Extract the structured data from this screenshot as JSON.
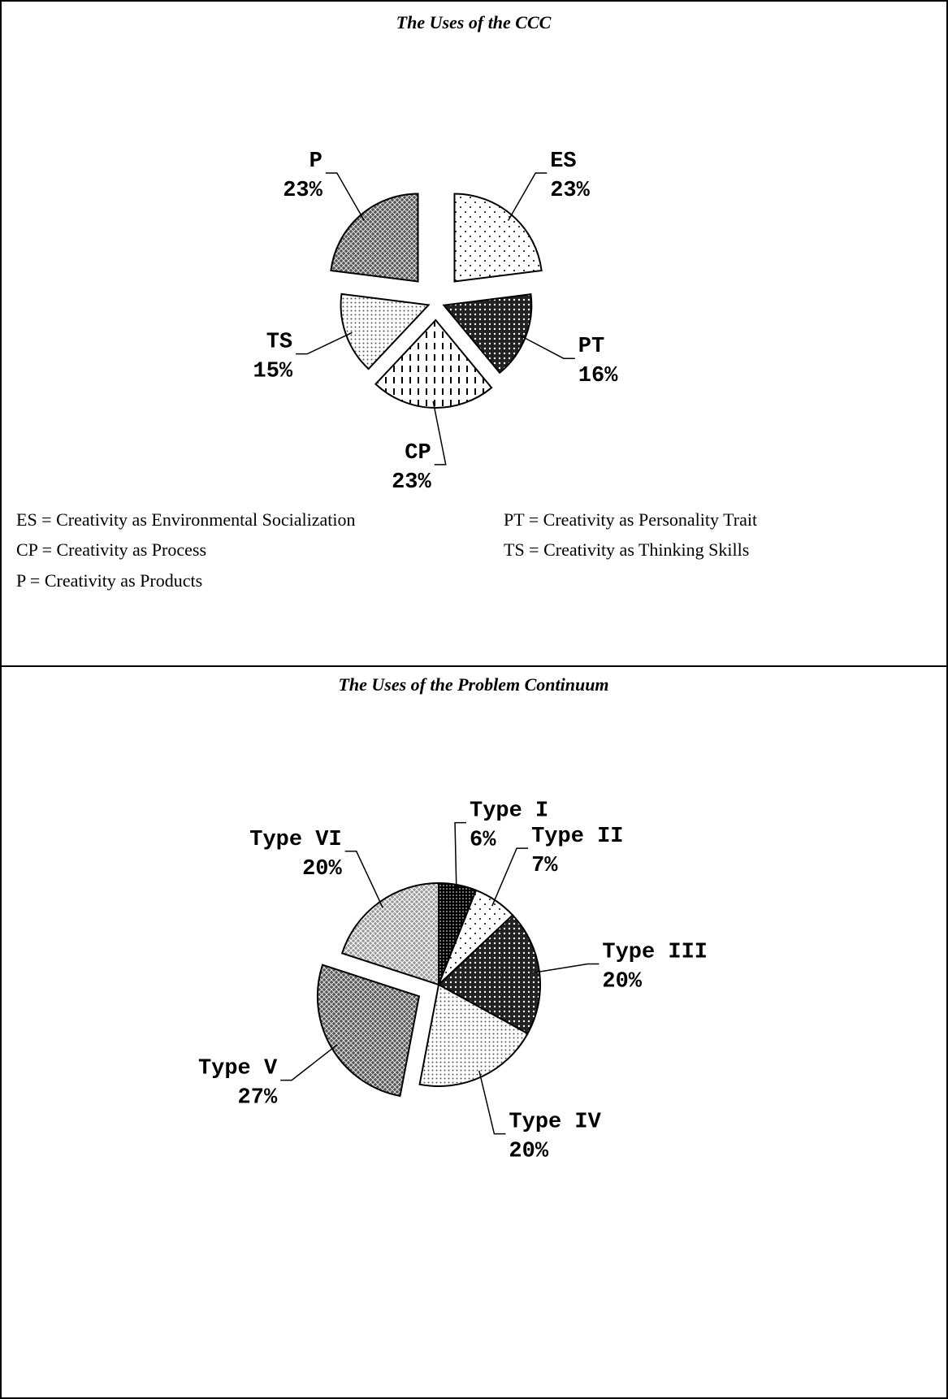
{
  "chart_data": [
    {
      "type": "pie",
      "title": "The Uses of the CCC",
      "categories": [
        "ES",
        "PT",
        "CP",
        "TS",
        "P"
      ],
      "values": [
        23,
        16,
        23,
        15,
        23
      ],
      "value_labels": [
        "23%",
        "16%",
        "23%",
        "15%",
        "23%"
      ],
      "notes": [
        "ES = Creativity as Environmental Socialization",
        "PT = Creativity as Personality Trait",
        "CP = Creativity as Process",
        "TS = Creativity as Thinking Skills",
        "P = Creativity as Products"
      ]
    },
    {
      "type": "pie",
      "title": "The Uses of the Problem Continuum",
      "categories": [
        "Type I",
        "Type II",
        "Type III",
        "Type IV",
        "Type V",
        "Type VI"
      ],
      "values": [
        6,
        7,
        20,
        20,
        27,
        20
      ],
      "value_labels": [
        "6%",
        "7%",
        "20%",
        "20%",
        "27%",
        "20%"
      ]
    }
  ]
}
